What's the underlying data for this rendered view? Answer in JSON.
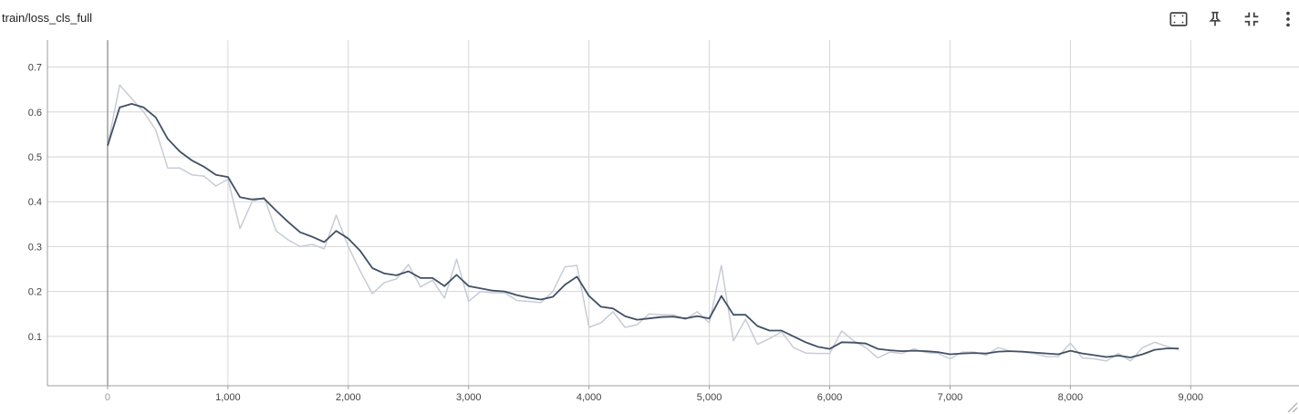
{
  "header": {
    "title": "train/loss_cls_full",
    "toolbar": [
      {
        "icon": "fit-to-domain-icon"
      },
      {
        "icon": "pin-icon"
      },
      {
        "icon": "collapse-icon"
      },
      {
        "icon": "more-vert-icon"
      }
    ]
  },
  "colors": {
    "smoothed": "#425066",
    "raw": "#c8ccd6",
    "grid": "#d6d6d6",
    "axis": "#9e9e9e"
  },
  "chart_data": {
    "type": "line",
    "title": "train/loss_cls_full",
    "xlabel": "",
    "ylabel": "",
    "xlim": [
      -500,
      9900
    ],
    "ylim": [
      -0.01,
      0.76
    ],
    "x_ticks": [
      0,
      1000,
      2000,
      3000,
      4000,
      5000,
      6000,
      7000,
      8000,
      9000
    ],
    "x_tick_labels": [
      "0",
      "1,000",
      "2,000",
      "3,000",
      "4,000",
      "5,000",
      "6,000",
      "7,000",
      "8,000",
      "9,000"
    ],
    "y_ticks": [
      0.1,
      0.2,
      0.3,
      0.4,
      0.5,
      0.6,
      0.7
    ],
    "y_tick_labels": [
      "0.1",
      "0.2",
      "0.3",
      "0.4",
      "0.5",
      "0.6",
      "0.7"
    ],
    "grid": true,
    "series": [
      {
        "role": "raw",
        "x": [
          0,
          100,
          200,
          300,
          400,
          500,
          600,
          700,
          800,
          900,
          1000,
          1100,
          1200,
          1300,
          1400,
          1500,
          1600,
          1700,
          1800,
          1900,
          2000,
          2100,
          2200,
          2300,
          2400,
          2500,
          2600,
          2700,
          2800,
          2900,
          3000,
          3100,
          3200,
          3300,
          3400,
          3500,
          3600,
          3700,
          3800,
          3900,
          4000,
          4100,
          4200,
          4300,
          4400,
          4500,
          4600,
          4700,
          4800,
          4900,
          5000,
          5100,
          5200,
          5300,
          5400,
          5500,
          5600,
          5700,
          5800,
          5900,
          6000,
          6100,
          6200,
          6300,
          6400,
          6500,
          6600,
          6700,
          6800,
          6900,
          7000,
          7100,
          7200,
          7300,
          7400,
          7500,
          7600,
          7700,
          7800,
          7900,
          8000,
          8100,
          8200,
          8300,
          8400,
          8500,
          8600,
          8700,
          8800,
          8900
        ],
        "y": [
          0.525,
          0.66,
          0.63,
          0.6,
          0.56,
          0.475,
          0.475,
          0.46,
          0.457,
          0.435,
          0.45,
          0.34,
          0.4,
          0.41,
          0.335,
          0.315,
          0.3,
          0.305,
          0.295,
          0.37,
          0.3,
          0.245,
          0.195,
          0.22,
          0.228,
          0.26,
          0.21,
          0.225,
          0.185,
          0.272,
          0.178,
          0.2,
          0.197,
          0.197,
          0.18,
          0.178,
          0.175,
          0.2,
          0.255,
          0.258,
          0.12,
          0.13,
          0.155,
          0.12,
          0.126,
          0.15,
          0.148,
          0.148,
          0.138,
          0.155,
          0.13,
          0.258,
          0.09,
          0.138,
          0.082,
          0.095,
          0.11,
          0.075,
          0.063,
          0.062,
          0.062,
          0.112,
          0.09,
          0.075,
          0.052,
          0.065,
          0.062,
          0.072,
          0.064,
          0.062,
          0.05,
          0.065,
          0.065,
          0.058,
          0.075,
          0.067,
          0.065,
          0.062,
          0.055,
          0.055,
          0.085,
          0.052,
          0.05,
          0.045,
          0.062,
          0.045,
          0.075,
          0.087,
          0.078,
          0.07
        ]
      },
      {
        "role": "smoothed",
        "x": [
          0,
          100,
          200,
          300,
          400,
          500,
          600,
          700,
          800,
          900,
          1000,
          1100,
          1200,
          1300,
          1400,
          1500,
          1600,
          1700,
          1800,
          1900,
          2000,
          2100,
          2200,
          2300,
          2400,
          2500,
          2600,
          2700,
          2800,
          2900,
          3000,
          3100,
          3200,
          3300,
          3400,
          3500,
          3600,
          3700,
          3800,
          3900,
          4000,
          4100,
          4200,
          4300,
          4400,
          4500,
          4600,
          4700,
          4800,
          4900,
          5000,
          5100,
          5200,
          5300,
          5400,
          5500,
          5600,
          5700,
          5800,
          5900,
          6000,
          6100,
          6200,
          6300,
          6400,
          6500,
          6600,
          6700,
          6800,
          6900,
          7000,
          7100,
          7200,
          7300,
          7400,
          7500,
          7600,
          7700,
          7800,
          7900,
          8000,
          8100,
          8200,
          8300,
          8400,
          8500,
          8600,
          8700,
          8800,
          8900
        ],
        "y": [
          0.525,
          0.61,
          0.618,
          0.61,
          0.588,
          0.54,
          0.512,
          0.492,
          0.478,
          0.46,
          0.455,
          0.41,
          0.405,
          0.407,
          0.38,
          0.355,
          0.332,
          0.322,
          0.31,
          0.335,
          0.318,
          0.29,
          0.252,
          0.24,
          0.236,
          0.245,
          0.23,
          0.23,
          0.212,
          0.237,
          0.212,
          0.207,
          0.202,
          0.2,
          0.192,
          0.186,
          0.182,
          0.188,
          0.215,
          0.233,
          0.19,
          0.166,
          0.162,
          0.145,
          0.137,
          0.14,
          0.143,
          0.144,
          0.14,
          0.145,
          0.14,
          0.19,
          0.148,
          0.148,
          0.123,
          0.113,
          0.113,
          0.1,
          0.087,
          0.077,
          0.072,
          0.087,
          0.086,
          0.084,
          0.072,
          0.069,
          0.067,
          0.068,
          0.067,
          0.065,
          0.06,
          0.062,
          0.063,
          0.062,
          0.066,
          0.067,
          0.066,
          0.064,
          0.062,
          0.06,
          0.068,
          0.062,
          0.058,
          0.054,
          0.057,
          0.053,
          0.06,
          0.07,
          0.073,
          0.073
        ]
      }
    ]
  }
}
